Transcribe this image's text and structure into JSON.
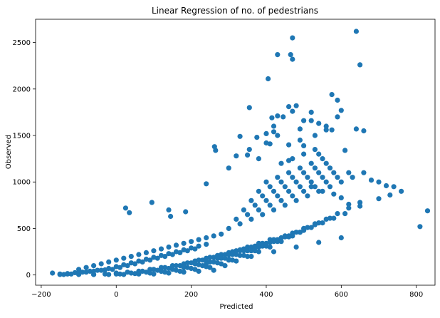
{
  "chart_data": {
    "type": "scatter",
    "title": "Linear Regression of no. of pedestrians",
    "xlabel": "Predicted",
    "ylabel": "Observed",
    "xlim": [
      -215,
      850
    ],
    "ylim": [
      -110,
      2750
    ],
    "x_ticks": [
      -200,
      0,
      200,
      400,
      600,
      800
    ],
    "x_tick_labels": [
      "−200",
      "0",
      "200",
      "400",
      "600",
      "800"
    ],
    "y_ticks": [
      0,
      500,
      1000,
      1500,
      2000,
      2500
    ],
    "y_tick_labels": [
      "0",
      "500",
      "1000",
      "1500",
      "2000",
      "2500"
    ],
    "grid": false,
    "marker_color": "#1f77b4",
    "series": [
      {
        "x": [
          -170,
          -150,
          -130,
          -110,
          -90,
          -70,
          -50,
          -30,
          -10,
          10,
          30,
          50,
          70,
          90,
          110,
          130,
          150,
          170,
          190,
          210,
          -140,
          -120,
          -100,
          -80,
          -60,
          -40,
          -20,
          0,
          20,
          40,
          60,
          80,
          100,
          120,
          140,
          160,
          180,
          200,
          220,
          240,
          -100,
          -80,
          -60,
          -40,
          -20,
          0,
          20,
          40,
          60,
          80,
          100,
          120,
          140,
          160,
          180,
          200,
          220,
          240,
          260,
          280,
          -60,
          -30,
          0,
          30,
          60,
          90,
          120,
          150,
          180,
          210,
          240,
          270,
          300,
          330,
          -20,
          10,
          40,
          70,
          100,
          130,
          160,
          190,
          220,
          250,
          280,
          310,
          340,
          370,
          20,
          50,
          80,
          110,
          140,
          170,
          200,
          230,
          260,
          290,
          320,
          350,
          380,
          410,
          60,
          90,
          120,
          150,
          180,
          210,
          240,
          270,
          300,
          330,
          360,
          390,
          420,
          450,
          100,
          130,
          160,
          190,
          220,
          250,
          280,
          310,
          340,
          370,
          400,
          430,
          460,
          490,
          140,
          170,
          200,
          230,
          260,
          290,
          320,
          350,
          380,
          410,
          440,
          470,
          500,
          530,
          180,
          210,
          240,
          270,
          300,
          330,
          360,
          390,
          420,
          450,
          480,
          510,
          540,
          570,
          220,
          250,
          280,
          310,
          340,
          370,
          400,
          430,
          460,
          490,
          520,
          550,
          580,
          610,
          260,
          290,
          320,
          350,
          380,
          410,
          440,
          470,
          500,
          530,
          560,
          590,
          620,
          650,
          300,
          330,
          360,
          390,
          420,
          450,
          480,
          510,
          540,
          570,
          600,
          630,
          660,
          320,
          350,
          380,
          410,
          440,
          470,
          500,
          530,
          560,
          590,
          620,
          340,
          370,
          400,
          430,
          460,
          490,
          520,
          550,
          580,
          360,
          390,
          420,
          450,
          480,
          510,
          540,
          570,
          380,
          410,
          440,
          470,
          500,
          530,
          560,
          400,
          430,
          460,
          490,
          520,
          550,
          440,
          470,
          500,
          530,
          460,
          490,
          25,
          35,
          95,
          140,
          145,
          185,
          265,
          262,
          240,
          300,
          320,
          355,
          375,
          400,
          410,
          420,
          430,
          445,
          460,
          470,
          480,
          500,
          520,
          540,
          560,
          575,
          590,
          610,
          640,
          660,
          680,
          700,
          720,
          740,
          760,
          810,
          830,
          600,
          620,
          650,
          700,
          730,
          550,
          520,
          580,
          -100,
          -150,
          -130,
          -60,
          0,
          60,
          120,
          180,
          240,
          300,
          360,
          420,
          480,
          540,
          600,
          355,
          405,
          430,
          465,
          470,
          415,
          530,
          560,
          575,
          590,
          600,
          640,
          650,
          330,
          380,
          400,
          350,
          520,
          540,
          470,
          490,
          430,
          460,
          500,
          420
        ],
        "y": [
          20,
          10,
          15,
          25,
          30,
          40,
          50,
          55,
          60,
          80,
          100,
          120,
          140,
          160,
          180,
          200,
          220,
          240,
          260,
          280,
          5,
          10,
          20,
          30,
          40,
          50,
          70,
          90,
          110,
          130,
          150,
          170,
          190,
          210,
          230,
          250,
          270,
          290,
          310,
          330,
          60,
          80,
          100,
          120,
          140,
          160,
          180,
          200,
          220,
          240,
          260,
          280,
          300,
          320,
          340,
          360,
          380,
          400,
          420,
          440,
          5,
          10,
          20,
          30,
          40,
          60,
          80,
          100,
          120,
          150,
          180,
          210,
          240,
          270,
          5,
          10,
          20,
          40,
          60,
          80,
          100,
          130,
          160,
          190,
          220,
          250,
          280,
          310,
          5,
          15,
          30,
          50,
          70,
          100,
          130,
          160,
          190,
          220,
          260,
          300,
          340,
          380,
          10,
          20,
          40,
          60,
          90,
          120,
          150,
          180,
          220,
          260,
          300,
          340,
          380,
          420,
          10,
          30,
          50,
          80,
          110,
          140,
          180,
          220,
          260,
          300,
          340,
          380,
          420,
          460,
          20,
          40,
          70,
          100,
          140,
          180,
          220,
          260,
          300,
          350,
          400,
          450,
          500,
          550,
          30,
          60,
          90,
          130,
          170,
          210,
          260,
          310,
          360,
          410,
          460,
          510,
          560,
          610,
          40,
          80,
          120,
          160,
          210,
          260,
          310,
          360,
          410,
          460,
          510,
          560,
          610,
          660,
          50,
          100,
          150,
          200,
          250,
          300,
          360,
          420,
          480,
          540,
          600,
          660,
          720,
          780,
          500,
          550,
          600,
          650,
          700,
          750,
          800,
          850,
          900,
          950,
          1000,
          1050,
          1100,
          600,
          650,
          700,
          750,
          800,
          850,
          900,
          950,
          1000,
          1050,
          1100,
          700,
          750,
          800,
          850,
          900,
          950,
          1000,
          1050,
          1100,
          800,
          850,
          900,
          950,
          1000,
          1050,
          1100,
          1150,
          900,
          950,
          1000,
          1050,
          1100,
          1150,
          1200,
          1000,
          1050,
          1100,
          1150,
          1200,
          1250,
          1200,
          1250,
          1300,
          1350,
          1400,
          1450,
          720,
          670,
          780,
          700,
          630,
          680,
          1340,
          1380,
          980,
          1150,
          1280,
          1350,
          1480,
          1520,
          1410,
          1600,
          1500,
          1700,
          1810,
          1760,
          1820,
          1660,
          1750,
          1300,
          1600,
          1560,
          1700,
          1340,
          1570,
          1550,
          1020,
          1000,
          960,
          950,
          900,
          520,
          690,
          830,
          760,
          740,
          820,
          860,
          900,
          950,
          870,
          5,
          5,
          10,
          5,
          10,
          20,
          40,
          80,
          120,
          160,
          200,
          250,
          300,
          350,
          400,
          1800,
          2110,
          2370,
          2370,
          2550,
          1690,
          1500,
          1560,
          1940,
          1880,
          1770,
          2620,
          2260,
          1490,
          1250,
          1420,
          1290,
          1660,
          1630,
          2320,
          1570,
          1710,
          1230,
          1390,
          1540
        ]
      }
    ]
  }
}
